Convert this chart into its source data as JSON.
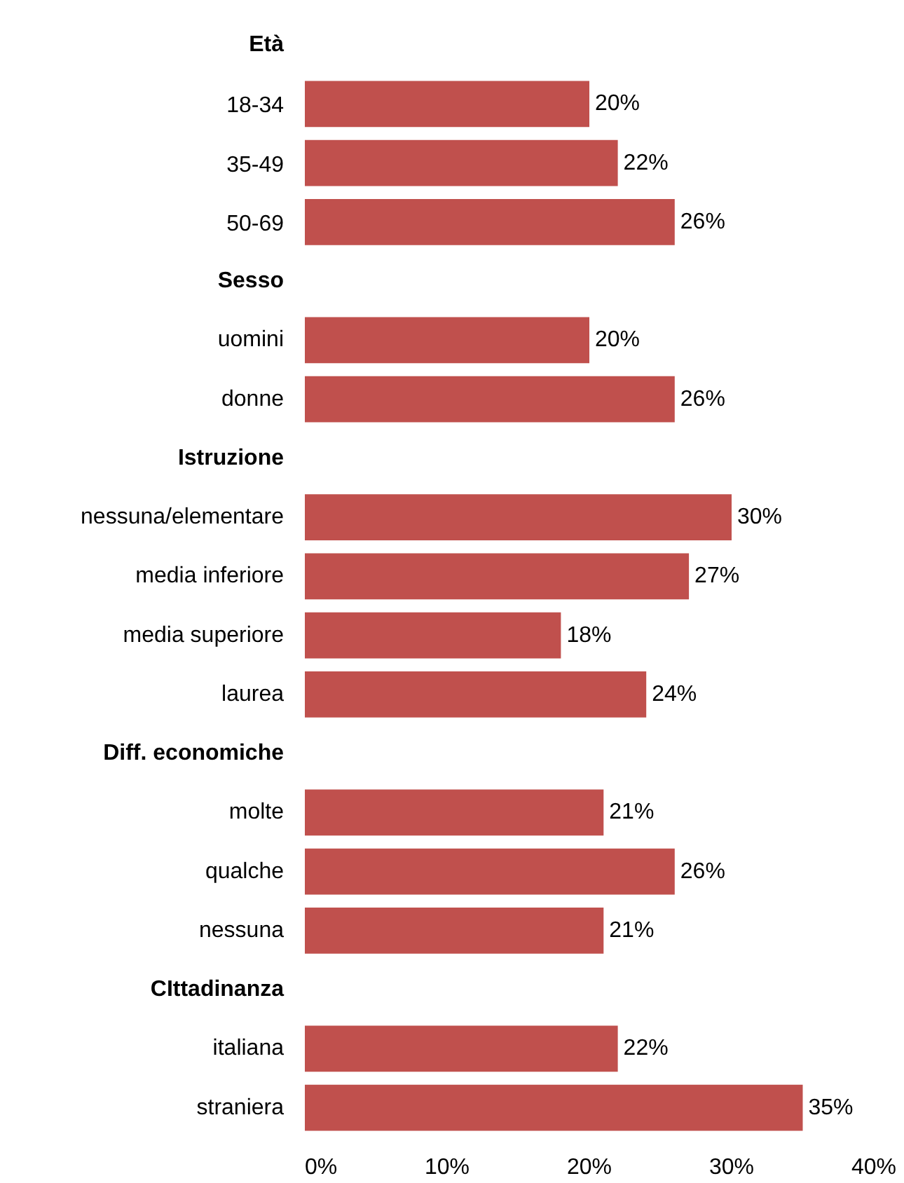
{
  "chart_data": {
    "type": "bar",
    "orientation": "horizontal",
    "categories": [
      "Età",
      "18-34",
      "35-49",
      "50-69",
      "Sesso",
      "uomini",
      "donne",
      "Istruzione",
      "nessuna/elementare",
      "media inferiore",
      "media superiore",
      "laurea",
      "Diff. economiche",
      "molte",
      "qualche",
      "nessuna",
      "CIttadinanza",
      "italiana",
      "straniera"
    ],
    "values": [
      null,
      20,
      22,
      26,
      null,
      20,
      26,
      null,
      30,
      27,
      18,
      24,
      null,
      21,
      26,
      21,
      null,
      22,
      35
    ],
    "value_labels": [
      null,
      "20%",
      "22%",
      "26%",
      null,
      "20%",
      "26%",
      null,
      "30%",
      "27%",
      "18%",
      "24%",
      null,
      "21%",
      "26%",
      "21%",
      null,
      "22%",
      "35%"
    ],
    "color": "#c0504d",
    "xlim": [
      0,
      40
    ],
    "xticks": [
      {
        "value": 0,
        "label": "0%"
      },
      {
        "value": 10,
        "label": "10%"
      },
      {
        "value": 20,
        "label": "20%"
      },
      {
        "value": 30,
        "label": "30%"
      },
      {
        "value": 40,
        "label": "40%"
      }
    ],
    "grid": false
  }
}
